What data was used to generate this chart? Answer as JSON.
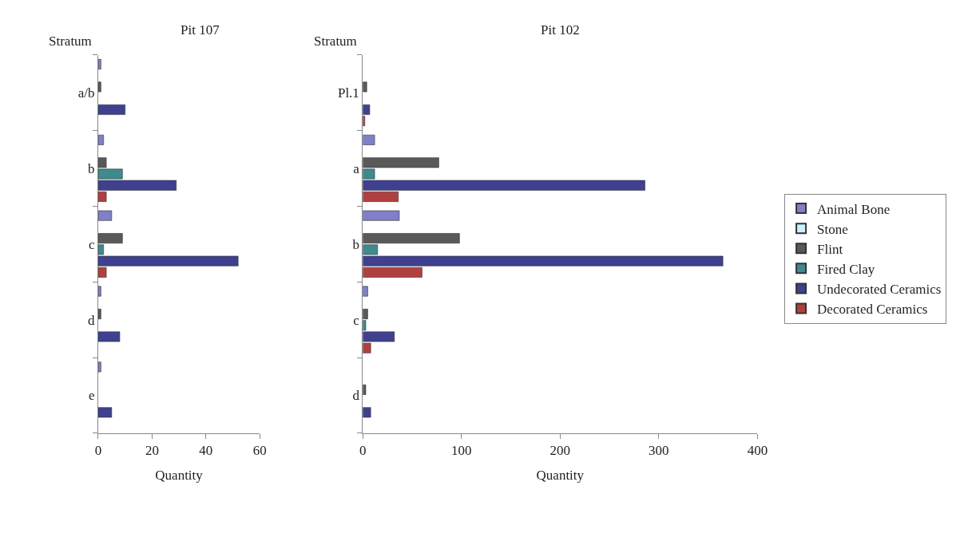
{
  "chart_data": [
    {
      "type": "bar",
      "orientation": "horizontal",
      "title": "Pit 107",
      "xlabel": "Quantity",
      "annotations": [
        "Stratum"
      ],
      "categories": [
        "a/b",
        "b",
        "c",
        "d",
        "e"
      ],
      "series": [
        {
          "name": "Animal Bone",
          "color": "#8080c8",
          "values": [
            1,
            2,
            5,
            1,
            1
          ]
        },
        {
          "name": "Stone",
          "color": "#cceeff",
          "values": [
            null,
            null,
            null,
            null,
            null
          ]
        },
        {
          "name": "Flint",
          "color": "#595959",
          "values": [
            1,
            3,
            9,
            1,
            null
          ]
        },
        {
          "name": "Fired Clay",
          "color": "#3f8a8c",
          "values": [
            null,
            9,
            2,
            null,
            null
          ]
        },
        {
          "name": "Undecorated Ceramics",
          "color": "#404090",
          "values": [
            10,
            29,
            52,
            8,
            5
          ]
        },
        {
          "name": "Decorated Ceramics",
          "color": "#b04040",
          "values": [
            null,
            3,
            3,
            null,
            null
          ]
        }
      ],
      "xlim": [
        0,
        60
      ],
      "xticks": [
        0,
        20,
        40,
        60
      ],
      "legend": "right"
    },
    {
      "type": "bar",
      "orientation": "horizontal",
      "title": "Pit 102",
      "xlabel": "Quantity",
      "annotations": [
        "Stratum"
      ],
      "categories": [
        "Pl.1",
        "a",
        "b",
        "c",
        "d"
      ],
      "series": [
        {
          "color": "#8080c8",
          "values": [
            null,
            12,
            37,
            5,
            null
          ]
        },
        {
          "color": "#cceeff",
          "values": [
            null,
            null,
            null,
            null,
            null
          ]
        },
        {
          "color": "#595959",
          "values": [
            4,
            77,
            98,
            5,
            3
          ]
        },
        {
          "color": "#3f8a8c",
          "values": [
            null,
            12,
            15,
            3,
            null
          ]
        },
        {
          "color": "#404090",
          "values": [
            7,
            286,
            365,
            32,
            8
          ]
        },
        {
          "color": "#b04040",
          "values": [
            2,
            36,
            60,
            8,
            null
          ]
        }
      ],
      "xlim": [
        0,
        400
      ],
      "xticks": [
        0,
        100,
        200,
        300,
        400
      ]
    }
  ]
}
